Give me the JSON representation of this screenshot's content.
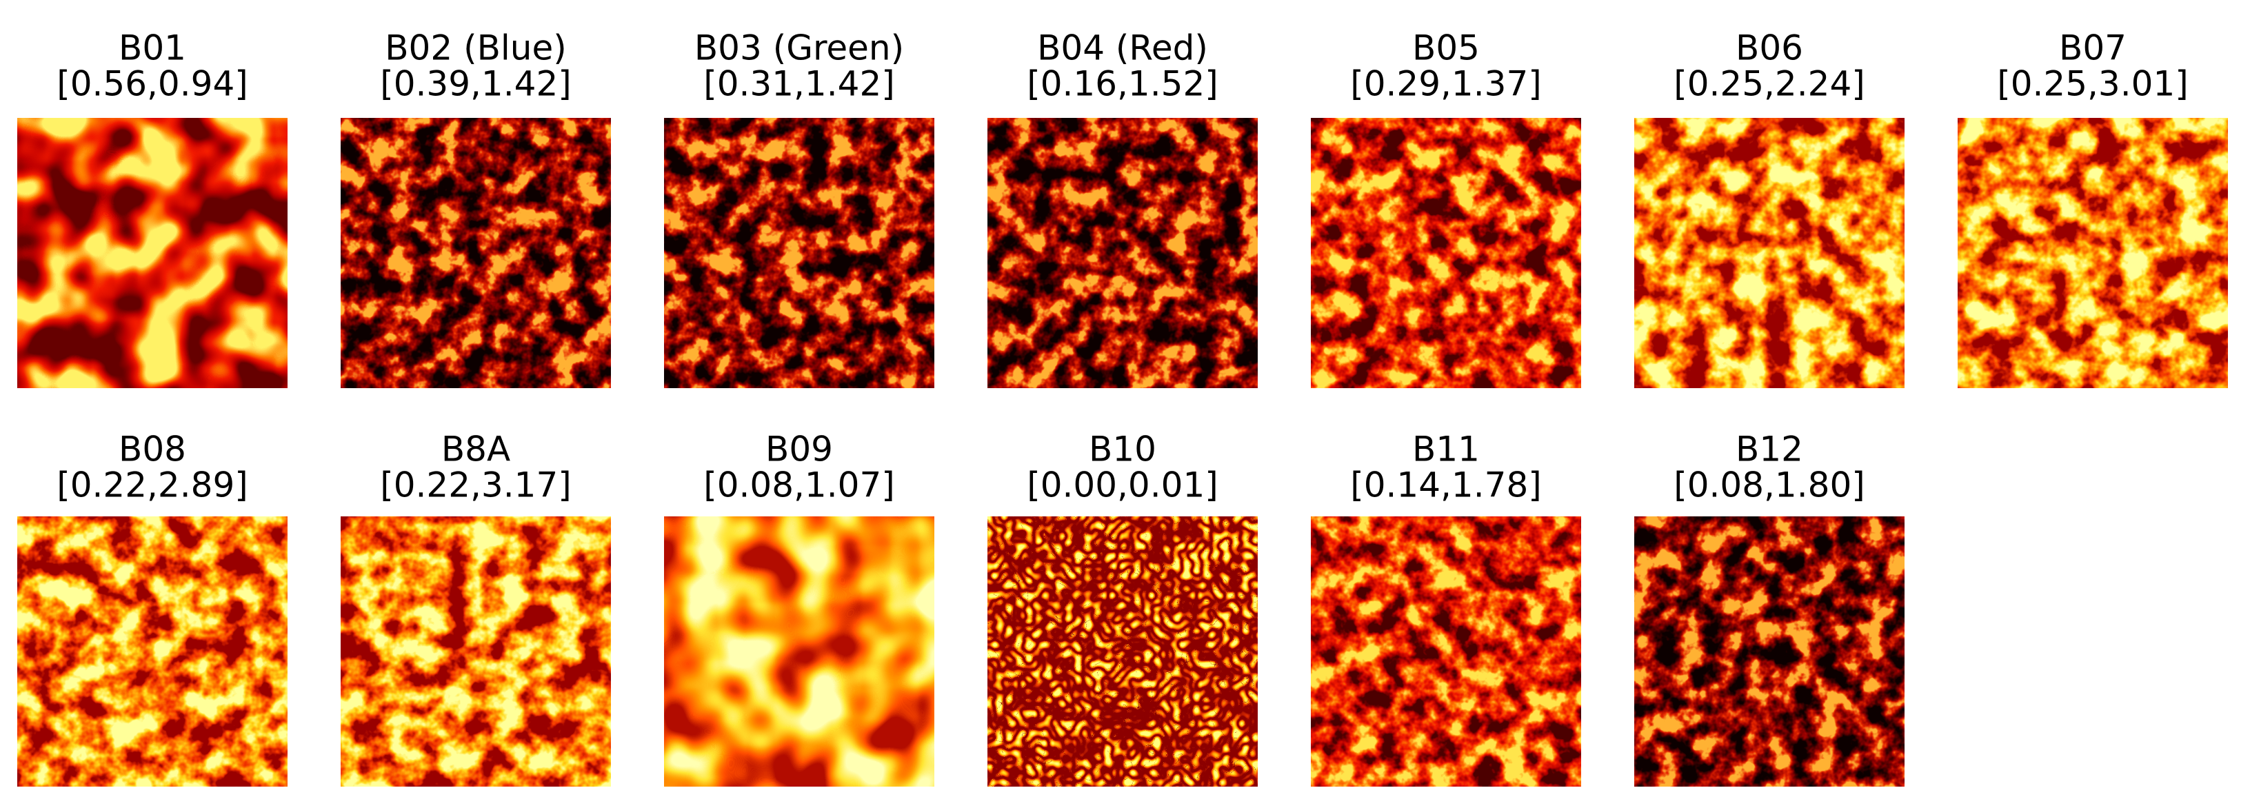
{
  "panels": [
    {
      "title": "B01",
      "range": "[0.56,0.94]"
    },
    {
      "title": "B02 (Blue)",
      "range": "[0.39,1.42]"
    },
    {
      "title": "B03 (Green)",
      "range": "[0.31,1.42]"
    },
    {
      "title": "B04 (Red)",
      "range": "[0.16,1.52]"
    },
    {
      "title": "B05",
      "range": "[0.29,1.37]"
    },
    {
      "title": "B06",
      "range": "[0.25,2.24]"
    },
    {
      "title": "B07",
      "range": "[0.25,3.01]"
    },
    {
      "title": "B08",
      "range": "[0.22,2.89]"
    },
    {
      "title": "B8A",
      "range": "[0.22,3.17]"
    },
    {
      "title": "B09",
      "range": "[0.08,1.07]"
    },
    {
      "title": "B10",
      "range": "[0.00,0.01]"
    },
    {
      "title": "B11",
      "range": "[0.14,1.78]"
    },
    {
      "title": "B12",
      "range": "[0.08,1.80]"
    }
  ]
}
